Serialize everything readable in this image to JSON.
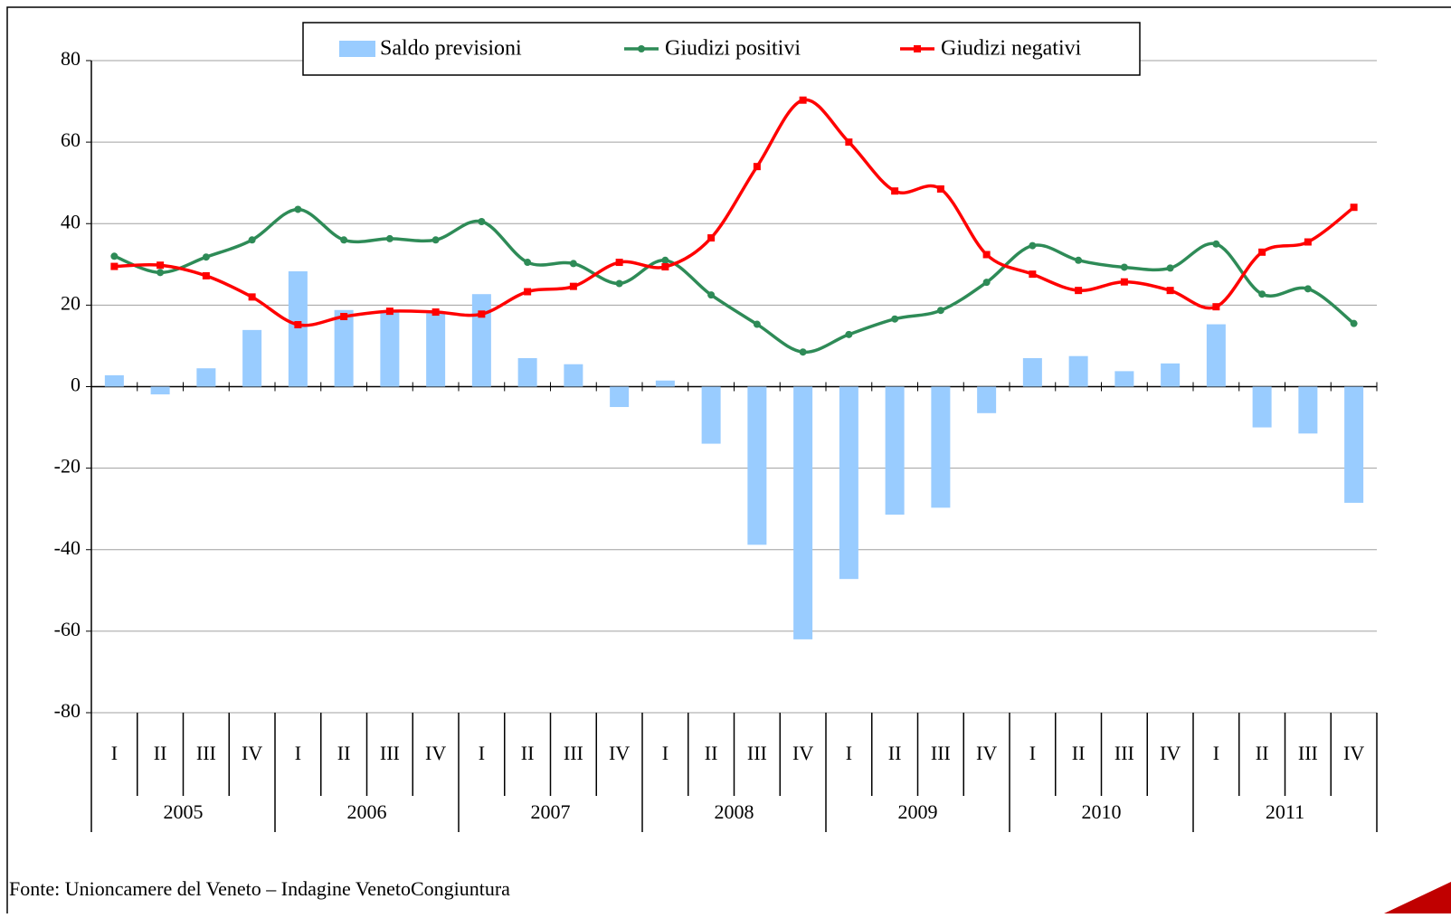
{
  "chart_data": {
    "type": "combo",
    "categories": [
      "I",
      "II",
      "III",
      "IV",
      "I",
      "II",
      "III",
      "IV",
      "I",
      "II",
      "III",
      "IV",
      "I",
      "II",
      "III",
      "IV",
      "I",
      "II",
      "III",
      "IV",
      "I",
      "II",
      "III",
      "IV",
      "I",
      "II",
      "III",
      "IV"
    ],
    "years": [
      "2005",
      "2006",
      "2007",
      "2008",
      "2009",
      "2010",
      "2011"
    ],
    "series": [
      {
        "name": "Saldo previsioni",
        "type": "bar",
        "color": "#99ccff",
        "values": [
          2.8,
          -1.9,
          4.5,
          13.9,
          28.3,
          18.8,
          18.3,
          18,
          22.7,
          7,
          5.5,
          -5,
          1.5,
          -14,
          -38.8,
          -62,
          -47.2,
          -31.4,
          -29.7,
          -6.5,
          7,
          7.5,
          3.8,
          5.7,
          15.3,
          -10,
          -11.5,
          -28.5
        ]
      },
      {
        "name": "Giudizi positivi",
        "type": "line",
        "color": "#2e8b57",
        "values": [
          32,
          28,
          31.8,
          36,
          43.5,
          36,
          36.3,
          36,
          40.5,
          30.5,
          30.2,
          25.3,
          31,
          22.5,
          15.3,
          8.5,
          12.8,
          16.6,
          18.7,
          25.6,
          34.6,
          31,
          29.3,
          29.1,
          35,
          22.7,
          24,
          15.5
        ]
      },
      {
        "name": "Giudizi negativi",
        "type": "line",
        "color": "#ff0000",
        "values": [
          29.5,
          29.8,
          27.2,
          22,
          15.2,
          17.2,
          18.5,
          18.3,
          17.8,
          23.3,
          24.6,
          30.5,
          29.4,
          36.5,
          54,
          70.3,
          60,
          48,
          48.5,
          32.4,
          27.6,
          23.6,
          25.7,
          23.6,
          19.6,
          33,
          35.5,
          44
        ]
      }
    ],
    "ylim": [
      -80,
      80
    ],
    "yticks": [
      -80,
      -60,
      -40,
      -20,
      0,
      20,
      40,
      60,
      80
    ],
    "grid": true,
    "source": "Fonte: Unioncamere del Veneto – Indagine VenetoCongiuntura"
  }
}
